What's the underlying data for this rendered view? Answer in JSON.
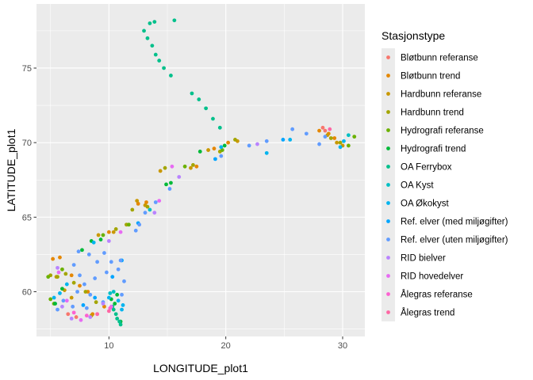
{
  "chart_data": {
    "type": "scatter",
    "xlabel": "LONGITUDE_plot1",
    "ylabel": "LATITUDE_plot1",
    "xlim": [
      3.8,
      31.9
    ],
    "ylim": [
      57.0,
      79.3
    ],
    "x_ticks": [
      10,
      20,
      30
    ],
    "y_ticks": [
      60,
      65,
      70,
      75
    ],
    "grid": true,
    "legend": {
      "title": "Stasjonstype",
      "placement": "right"
    },
    "series": [
      {
        "name": "Bløtbunn referanse",
        "color": "#F8766D",
        "points": [
          [
            28.3,
            71.0
          ],
          [
            28.5,
            70.8
          ],
          [
            7.2,
            58.3
          ],
          [
            6.5,
            58.5
          ]
        ]
      },
      {
        "name": "Bløtbunn trend",
        "color": "#E58700",
        "points": [
          [
            28.0,
            70.8
          ],
          [
            28.8,
            70.6
          ],
          [
            29.3,
            70.3
          ],
          [
            5.2,
            62.2
          ],
          [
            5.8,
            62.3
          ],
          [
            6.8,
            61.1
          ],
          [
            7.5,
            60.4
          ],
          [
            8.2,
            60.0
          ],
          [
            8.6,
            58.5
          ],
          [
            9.6,
            59.0
          ],
          [
            10.0,
            64.0
          ],
          [
            12.5,
            65.9
          ],
          [
            13.2,
            66.0
          ],
          [
            17.5,
            68.4
          ],
          [
            19.0,
            69.6
          ],
          [
            20.2,
            70.0
          ]
        ]
      },
      {
        "name": "Hardbunn referanse",
        "color": "#C99800",
        "points": [
          [
            28.7,
            70.5
          ],
          [
            29.5,
            70.0
          ],
          [
            30.0,
            69.8
          ],
          [
            5.5,
            61.0
          ],
          [
            6.2,
            60.1
          ],
          [
            6.8,
            59.6
          ],
          [
            8.5,
            58.4
          ],
          [
            9.1,
            63.8
          ],
          [
            10.4,
            64.0
          ],
          [
            12.4,
            66.1
          ],
          [
            13.1,
            65.8
          ],
          [
            14.4,
            68.1
          ],
          [
            17.0,
            68.3
          ],
          [
            18.5,
            69.5
          ],
          [
            21.0,
            70.1
          ]
        ]
      },
      {
        "name": "Hardbunn trend",
        "color": "#A3A500",
        "points": [
          [
            29.0,
            70.3
          ],
          [
            29.8,
            70.0
          ],
          [
            5.0,
            61.1
          ],
          [
            5.6,
            61.0
          ],
          [
            6.3,
            61.2
          ],
          [
            7.0,
            60.6
          ],
          [
            8.0,
            60.0
          ],
          [
            8.9,
            59.3
          ],
          [
            10.6,
            64.2
          ],
          [
            11.5,
            64.5
          ],
          [
            12.0,
            65.5
          ],
          [
            13.3,
            65.7
          ],
          [
            14.8,
            68.3
          ],
          [
            17.2,
            68.5
          ],
          [
            19.5,
            69.4
          ],
          [
            20.8,
            70.2
          ]
        ]
      },
      {
        "name": "Hydrografi referanse",
        "color": "#6BB100",
        "points": [
          [
            4.8,
            61.0
          ],
          [
            5.0,
            59.5
          ],
          [
            5.3,
            59.2
          ],
          [
            6.0,
            61.5
          ],
          [
            9.5,
            63.8
          ],
          [
            11.7,
            64.5
          ],
          [
            16.5,
            68.4
          ],
          [
            19.7,
            69.5
          ],
          [
            31.0,
            70.4
          ],
          [
            30.5,
            69.8
          ]
        ]
      },
      {
        "name": "Hydrografi trend",
        "color": "#00BA38",
        "points": [
          [
            5.4,
            59.2
          ],
          [
            6.0,
            60.2
          ],
          [
            7.7,
            62.8
          ],
          [
            8.5,
            63.4
          ],
          [
            9.3,
            63.5
          ],
          [
            10.2,
            59.5
          ],
          [
            10.5,
            59.2
          ],
          [
            10.7,
            59.8
          ],
          [
            11.0,
            58.0
          ],
          [
            14.9,
            67.2
          ],
          [
            15.3,
            67.3
          ],
          [
            17.8,
            69.4
          ],
          [
            19.9,
            69.8
          ]
        ]
      },
      {
        "name": "OA Ferrybox",
        "color": "#00C08B",
        "points": [
          [
            10.3,
            59.0
          ],
          [
            10.4,
            58.8
          ],
          [
            10.6,
            58.5
          ],
          [
            10.7,
            58.2
          ],
          [
            10.9,
            58.0
          ],
          [
            11.0,
            57.8
          ],
          [
            13.0,
            77.5
          ],
          [
            13.3,
            77.0
          ],
          [
            13.7,
            76.5
          ],
          [
            14.0,
            75.9
          ],
          [
            14.3,
            75.5
          ],
          [
            14.7,
            75.0
          ],
          [
            15.3,
            74.5
          ],
          [
            17.1,
            73.3
          ],
          [
            17.7,
            72.9
          ],
          [
            18.3,
            72.3
          ],
          [
            18.9,
            71.6
          ],
          [
            19.5,
            71.0
          ],
          [
            13.9,
            78.1
          ],
          [
            15.6,
            78.2
          ],
          [
            13.5,
            78.0
          ]
        ]
      },
      {
        "name": "OA Kyst",
        "color": "#00BFC4",
        "points": [
          [
            10.1,
            59.9
          ],
          [
            10.4,
            60.0
          ],
          [
            13.5,
            65.5
          ],
          [
            30.5,
            70.5
          ]
        ]
      },
      {
        "name": "OA Økokyst",
        "color": "#00B4EF",
        "points": [
          [
            5.3,
            59.6
          ],
          [
            5.8,
            59.9
          ],
          [
            6.4,
            60.5
          ],
          [
            8.7,
            63.3
          ],
          [
            10.0,
            59.6
          ],
          [
            10.8,
            59.4
          ],
          [
            11.2,
            59.1
          ],
          [
            11.1,
            58.8
          ],
          [
            19.6,
            69.7
          ],
          [
            23.5,
            69.3
          ],
          [
            29.8,
            69.7
          ],
          [
            30.1,
            70.1
          ],
          [
            25.5,
            70.2
          ]
        ]
      },
      {
        "name": "Ref. elver (med miljøgifter)",
        "color": "#00A5FF",
        "points": [
          [
            7.8,
            59.1
          ],
          [
            8.8,
            59.6
          ],
          [
            10.3,
            61.0
          ],
          [
            11.1,
            62.1
          ],
          [
            12.5,
            64.6
          ],
          [
            19.1,
            68.9
          ],
          [
            24.9,
            70.2
          ]
        ]
      },
      {
        "name": "Ref. elver (uten miljøgifter)",
        "color": "#619CFF",
        "points": [
          [
            5.6,
            58.8
          ],
          [
            6.1,
            59.4
          ],
          [
            6.9,
            59.0
          ],
          [
            7.3,
            60.0
          ],
          [
            7.0,
            61.8
          ],
          [
            7.5,
            61.1
          ],
          [
            7.9,
            60.5
          ],
          [
            8.1,
            58.9
          ],
          [
            8.3,
            62.5
          ],
          [
            8.8,
            60.9
          ],
          [
            9.0,
            62.0
          ],
          [
            9.6,
            62.6
          ],
          [
            9.8,
            61.3
          ],
          [
            10.2,
            62.0
          ],
          [
            10.8,
            61.5
          ],
          [
            11.0,
            62.1
          ],
          [
            11.3,
            60.7
          ],
          [
            11.1,
            59.8
          ],
          [
            9.5,
            59.3
          ],
          [
            8.4,
            59.8
          ],
          [
            7.4,
            62.7
          ],
          [
            12.3,
            64.1
          ],
          [
            12.6,
            64.5
          ],
          [
            13.1,
            65.3
          ],
          [
            14.0,
            66.0
          ],
          [
            15.2,
            66.9
          ],
          [
            19.6,
            69.1
          ],
          [
            22.0,
            69.8
          ],
          [
            23.5,
            70.1
          ],
          [
            25.7,
            70.9
          ],
          [
            26.9,
            70.6
          ],
          [
            28.0,
            69.9
          ],
          [
            28.5,
            70.4
          ]
        ]
      },
      {
        "name": "RID bielver",
        "color": "#B983FF",
        "points": [
          [
            5.6,
            61.6
          ],
          [
            6.0,
            59.0
          ],
          [
            6.8,
            58.2
          ],
          [
            8.4,
            58.3
          ],
          [
            9.5,
            59.2
          ],
          [
            10.0,
            63.4
          ],
          [
            13.9,
            65.3
          ],
          [
            16.0,
            67.7
          ],
          [
            22.7,
            69.9
          ]
        ]
      },
      {
        "name": "RID hovedelver",
        "color": "#E76BF3",
        "points": [
          [
            5.7,
            61.3
          ],
          [
            6.4,
            59.4
          ],
          [
            7.6,
            58.1
          ],
          [
            9.0,
            58.5
          ],
          [
            10.2,
            59.0
          ],
          [
            11.0,
            64.0
          ],
          [
            14.3,
            66.1
          ],
          [
            15.4,
            68.4
          ]
        ]
      },
      {
        "name": "Ålegras referanse",
        "color": "#FD61D1",
        "points": [
          [
            7.0,
            58.6
          ],
          [
            8.1,
            58.4
          ],
          [
            10.1,
            58.9
          ]
        ]
      },
      {
        "name": "Ålegras trend",
        "color": "#FF67A4",
        "points": [
          [
            9.0,
            58.5
          ],
          [
            10.0,
            58.7
          ],
          [
            28.9,
            70.9
          ]
        ]
      }
    ]
  }
}
